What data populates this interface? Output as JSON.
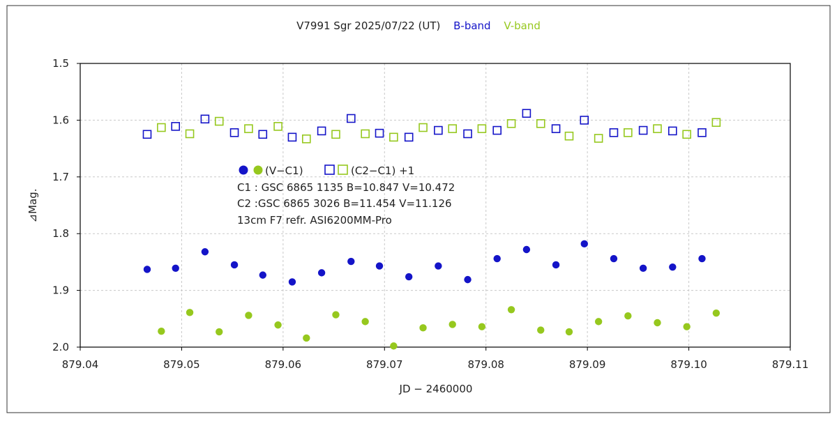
{
  "chart_data": {
    "type": "scatter",
    "title": "V7991 Sgr   2025/07/22 (UT)",
    "title_bands": [
      {
        "text": "B-band",
        "color": "#1414c8"
      },
      {
        "text": "V-band",
        "color": "#96c81e"
      }
    ],
    "xlabel": "JD − 2460000",
    "ylabel": "⊿Mag.",
    "xlim": [
      879.04,
      879.11
    ],
    "ylim": [
      1.5,
      2.0
    ],
    "y_inverted": true,
    "grid": true,
    "x_ticks": [
      {
        "value": 879.04,
        "label": "879.04"
      },
      {
        "value": 879.05,
        "label": "879.05"
      },
      {
        "value": 879.06,
        "label": "879.06"
      },
      {
        "value": 879.07,
        "label": "879.07"
      },
      {
        "value": 879.08,
        "label": "879.08"
      },
      {
        "value": 879.09,
        "label": "879.09"
      },
      {
        "value": 879.1,
        "label": "879.10"
      },
      {
        "value": 879.11,
        "label": "879.11"
      }
    ],
    "y_ticks": [
      {
        "value": 1.5,
        "label": "1.5"
      },
      {
        "value": 1.6,
        "label": "1.6"
      },
      {
        "value": 1.7,
        "label": "1.7"
      },
      {
        "value": 1.8,
        "label": "1.8"
      },
      {
        "value": 1.9,
        "label": "1.9"
      },
      {
        "value": 2.0,
        "label": "2.0"
      }
    ],
    "legend": {
      "vc1_label": "(V−C1)",
      "c2c1_label": "(C2−C1) +1"
    },
    "info_lines": [
      "C1 : GSC 6865 1135    B=10.847   V=10.472",
      "C2 :GSC 6865 3026    B=11.454   V=11.126",
      "13cm  F7  refr.    ASI6200MM-Pro"
    ],
    "colors": {
      "b_band": "#1414c8",
      "v_band": "#96c81e",
      "grid": "#c8c8c8",
      "axis": "#000000",
      "frame": "#333333"
    },
    "series": [
      {
        "band": "B",
        "kind": "V-C1",
        "marker": "filled-circle",
        "color": "#1414c8",
        "points": [
          [
            879.0466,
            1.863
          ],
          [
            879.0494,
            1.861
          ],
          [
            879.0523,
            1.832
          ],
          [
            879.0552,
            1.855
          ],
          [
            879.058,
            1.873
          ],
          [
            879.0609,
            1.885
          ],
          [
            879.0638,
            1.869
          ],
          [
            879.0667,
            1.849
          ],
          [
            879.0695,
            1.857
          ],
          [
            879.0724,
            1.876
          ],
          [
            879.0753,
            1.857
          ],
          [
            879.0782,
            1.881
          ],
          [
            879.0811,
            1.844
          ],
          [
            879.084,
            1.828
          ],
          [
            879.0869,
            1.855
          ],
          [
            879.0897,
            1.818
          ],
          [
            879.0926,
            1.844
          ],
          [
            879.0955,
            1.861
          ],
          [
            879.0984,
            1.859
          ],
          [
            879.1013,
            1.844
          ]
        ]
      },
      {
        "band": "V",
        "kind": "V-C1",
        "marker": "filled-circle",
        "color": "#96c81e",
        "points": [
          [
            879.048,
            1.972
          ],
          [
            879.0508,
            1.939
          ],
          [
            879.0537,
            1.973
          ],
          [
            879.0566,
            1.944
          ],
          [
            879.0595,
            1.961
          ],
          [
            879.0623,
            1.984
          ],
          [
            879.0652,
            1.943
          ],
          [
            879.0681,
            1.955
          ],
          [
            879.0709,
            1.998
          ],
          [
            879.0738,
            1.966
          ],
          [
            879.0767,
            1.96
          ],
          [
            879.0796,
            1.964
          ],
          [
            879.0825,
            1.934
          ],
          [
            879.0854,
            1.97
          ],
          [
            879.0882,
            1.973
          ],
          [
            879.0911,
            1.955
          ],
          [
            879.094,
            1.945
          ],
          [
            879.0969,
            1.957
          ],
          [
            879.0998,
            1.964
          ],
          [
            879.1027,
            1.94
          ]
        ]
      },
      {
        "band": "B",
        "kind": "C2-C1 +1",
        "marker": "open-square",
        "color": "#1414c8",
        "points": [
          [
            879.0466,
            1.625
          ],
          [
            879.0494,
            1.611
          ],
          [
            879.0523,
            1.598
          ],
          [
            879.0552,
            1.622
          ],
          [
            879.058,
            1.625
          ],
          [
            879.0609,
            1.63
          ],
          [
            879.0638,
            1.619
          ],
          [
            879.0667,
            1.597
          ],
          [
            879.0695,
            1.623
          ],
          [
            879.0724,
            1.63
          ],
          [
            879.0753,
            1.618
          ],
          [
            879.0782,
            1.624
          ],
          [
            879.0811,
            1.618
          ],
          [
            879.084,
            1.588
          ],
          [
            879.0869,
            1.615
          ],
          [
            879.0897,
            1.6
          ],
          [
            879.0926,
            1.622
          ],
          [
            879.0955,
            1.618
          ],
          [
            879.0984,
            1.619
          ],
          [
            879.1013,
            1.622
          ]
        ]
      },
      {
        "band": "V",
        "kind": "C2-C1 +1",
        "marker": "open-square",
        "color": "#96c81e",
        "points": [
          [
            879.048,
            1.613
          ],
          [
            879.0508,
            1.624
          ],
          [
            879.0537,
            1.602
          ],
          [
            879.0566,
            1.615
          ],
          [
            879.0595,
            1.611
          ],
          [
            879.0623,
            1.633
          ],
          [
            879.0652,
            1.625
          ],
          [
            879.0681,
            1.624
          ],
          [
            879.0709,
            1.63
          ],
          [
            879.0738,
            1.613
          ],
          [
            879.0767,
            1.615
          ],
          [
            879.0796,
            1.615
          ],
          [
            879.0825,
            1.606
          ],
          [
            879.0854,
            1.606
          ],
          [
            879.0882,
            1.628
          ],
          [
            879.0911,
            1.632
          ],
          [
            879.094,
            1.622
          ],
          [
            879.0969,
            1.615
          ],
          [
            879.0998,
            1.625
          ],
          [
            879.1027,
            1.604
          ]
        ]
      }
    ]
  }
}
